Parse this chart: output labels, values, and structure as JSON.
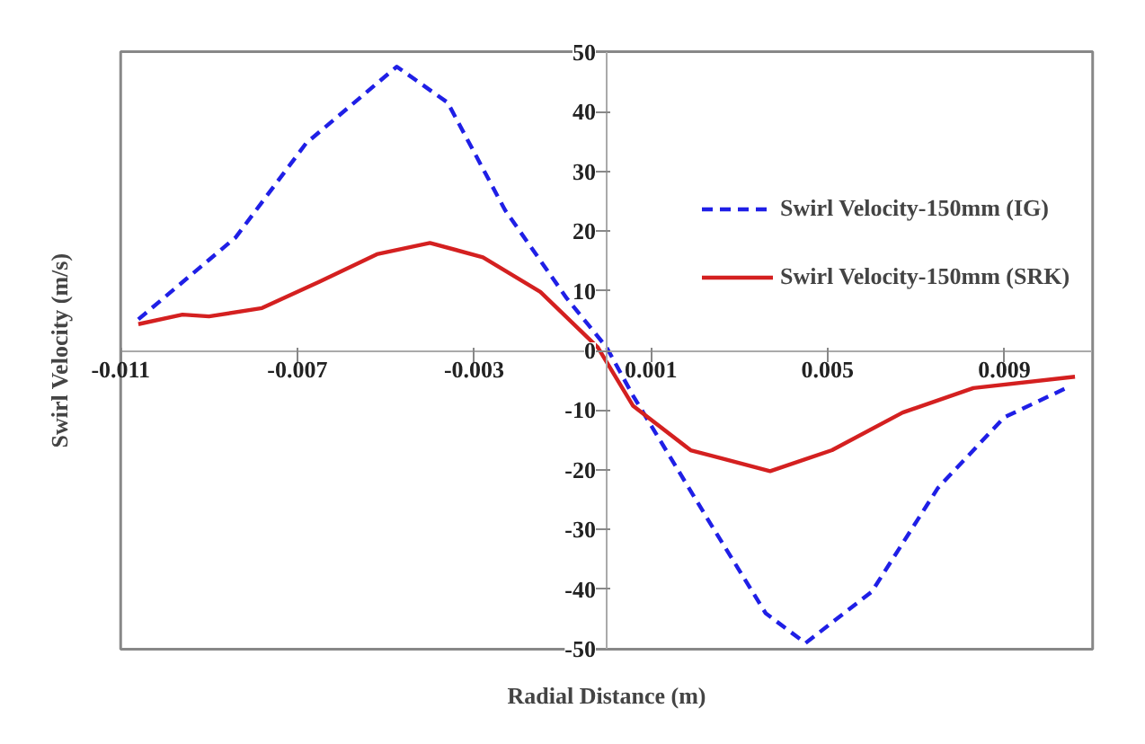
{
  "chart_data": {
    "type": "line",
    "xlabel": "Radial Distance (m)",
    "ylabel": "Swirl Velocity (m/s)",
    "xlim": [
      -0.011,
      0.011
    ],
    "ylim": [
      -50,
      50
    ],
    "xticks": [
      -0.011,
      -0.007,
      -0.003,
      0.001,
      0.005,
      0.009
    ],
    "yticks": [
      -50,
      -40,
      -30,
      -20,
      -10,
      0,
      10,
      20,
      30,
      40,
      50
    ],
    "grid": false,
    "legend": "right",
    "marker": "none",
    "series": [
      {
        "name": "Swirl Velocity-150mm (IG)",
        "color": "#1f1fe6",
        "line_style": "dashed",
        "x": [
          -0.0106,
          -0.0084,
          -0.0068,
          -0.00475,
          -0.0036,
          -0.0023,
          -0.0009,
          0.0,
          0.0006,
          0.0023,
          0.0036,
          0.0045,
          0.006,
          0.0075,
          0.009,
          0.0104
        ],
        "values": [
          5.2,
          18.9,
          34.7,
          47.5,
          41.5,
          23.5,
          8.7,
          0.5,
          -7.6,
          -28.4,
          -44,
          -49,
          -40.4,
          -23,
          -11.2,
          -6.3
        ]
      },
      {
        "name": "Swirl Velocity-150mm (SRK)",
        "color": "#d42020",
        "line_style": "solid",
        "x": [
          -0.0106,
          -0.0096,
          -0.009,
          -0.0078,
          -0.0065,
          -0.0052,
          -0.004,
          -0.0028,
          -0.0015,
          -0.0002,
          0.0006,
          0.0019,
          0.0037,
          0.0051,
          0.0067,
          0.0083,
          0.0106
        ],
        "values": [
          4.4,
          6,
          5.7,
          7.1,
          11.5,
          16.1,
          18,
          15.6,
          9.8,
          0.5,
          -9.3,
          -16.7,
          -20.2,
          -16.7,
          -10.4,
          -6.3,
          -4.4
        ]
      }
    ]
  }
}
